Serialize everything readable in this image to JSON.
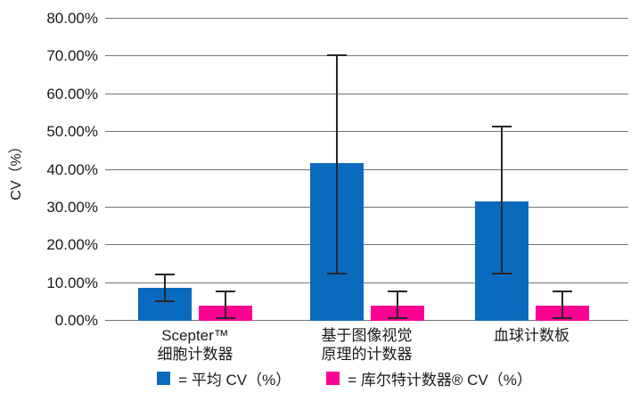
{
  "chart": {
    "background": "#ffffff",
    "y_axis_title": "CV（%）",
    "colors": {
      "blue": "#0a6abe",
      "pink": "#fb0091",
      "grid": "#757575",
      "axis": "#757575",
      "error_bar": "#262626",
      "text": "#1a1a1a"
    },
    "legend": {
      "items": [
        {
          "label": "= 平均 CV（%）",
          "color_key": "blue"
        },
        {
          "label": "= 库尔特计数器® CV（%）",
          "color_key": "pink"
        }
      ]
    }
  },
  "chart_data": {
    "type": "bar",
    "title": "",
    "xlabel": "",
    "ylabel": "CV（%）",
    "ylim": [
      0,
      80
    ],
    "ytick_labels": [
      "0.00%",
      "10.00%",
      "20.00%",
      "30.00%",
      "40.00%",
      "50.00%",
      "60.00%",
      "70.00%",
      "80.00%"
    ],
    "grid": true,
    "legend_position": "bottom",
    "categories": [
      "Scepter™ 细胞计数器",
      "基于图像视觉 原理的计数器",
      "血球计数板"
    ],
    "category_lines": [
      [
        "Scepter™",
        "细胞计数器"
      ],
      [
        "基于图像视觉",
        "原理的计数器"
      ],
      [
        "血球计数板"
      ]
    ],
    "series": [
      {
        "name": "平均 CV（%）",
        "color_key": "blue",
        "values": [
          8.7,
          41.8,
          31.7
        ],
        "error_high": [
          12.3,
          70.4,
          51.5
        ],
        "error_low": [
          5.2,
          12.5,
          12.5
        ]
      },
      {
        "name": "库尔特计数器® CV（%）",
        "color_key": "pink",
        "values": [
          4.0,
          4.0,
          4.0
        ],
        "error_high": [
          7.8,
          7.8,
          7.8
        ],
        "error_low": [
          0.6,
          0.6,
          0.6
        ]
      }
    ]
  }
}
